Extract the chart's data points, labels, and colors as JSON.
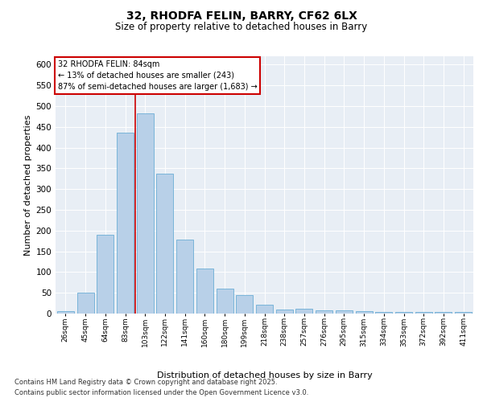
{
  "title_line1": "32, RHODFA FELIN, BARRY, CF62 6LX",
  "title_line2": "Size of property relative to detached houses in Barry",
  "xlabel": "Distribution of detached houses by size in Barry",
  "ylabel": "Number of detached properties",
  "categories": [
    "26sqm",
    "45sqm",
    "64sqm",
    "83sqm",
    "103sqm",
    "122sqm",
    "141sqm",
    "160sqm",
    "180sqm",
    "199sqm",
    "218sqm",
    "238sqm",
    "257sqm",
    "276sqm",
    "295sqm",
    "315sqm",
    "334sqm",
    "353sqm",
    "372sqm",
    "392sqm",
    "411sqm"
  ],
  "values": [
    5,
    50,
    190,
    435,
    483,
    338,
    178,
    108,
    60,
    45,
    22,
    10,
    12,
    7,
    7,
    5,
    3,
    3,
    3,
    3,
    3
  ],
  "bar_color": "#b8d0e8",
  "bar_edge_color": "#6baed6",
  "bar_linewidth": 0.6,
  "annotation_title": "32 RHODFA FELIN: 84sqm",
  "annotation_line2": "← 13% of detached houses are smaller (243)",
  "annotation_line3": "87% of semi-detached houses are larger (1,683) →",
  "annotation_box_color": "#ffffff",
  "annotation_box_edge": "#cc0000",
  "ylim": [
    0,
    620
  ],
  "yticks": [
    0,
    50,
    100,
    150,
    200,
    250,
    300,
    350,
    400,
    450,
    500,
    550,
    600
  ],
  "bg_color": "#e8eef5",
  "grid_color": "#ffffff",
  "title_fontsize1": 10,
  "title_fontsize2": 8.5,
  "footer_line1": "Contains HM Land Registry data © Crown copyright and database right 2025.",
  "footer_line2": "Contains public sector information licensed under the Open Government Licence v3.0."
}
